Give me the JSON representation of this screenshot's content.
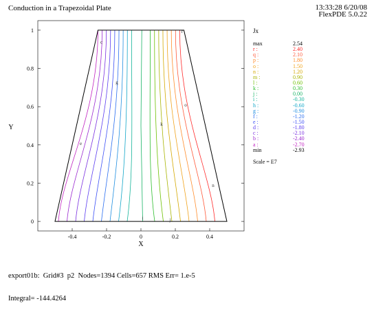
{
  "header": {
    "title": "Conduction in a Trapezoidal Plate",
    "timestamp": "13:33:28 6/20/08",
    "version": "FlexPDE 5.0.22"
  },
  "chart_data": {
    "type": "contour",
    "xlabel": "X",
    "ylabel": "Y",
    "xlim": [
      -0.6,
      0.6
    ],
    "ylim": [
      -0.05,
      1.05
    ],
    "xticks": [
      "-0.4",
      "-0.2",
      "0",
      "0.2",
      "0.4"
    ],
    "xtick_values": [
      -0.4,
      -0.2,
      0,
      0.2,
      0.4
    ],
    "yticks": [
      "0",
      "0.2",
      "0.4",
      "0.6",
      "0.8",
      "1"
    ],
    "ytick_values": [
      0,
      0.2,
      0.4,
      0.6,
      0.8,
      1
    ],
    "domain_outline": [
      [
        -0.5,
        0
      ],
      [
        0.5,
        0
      ],
      [
        0.25,
        1
      ],
      [
        -0.25,
        1
      ]
    ],
    "variable": "Jx",
    "max": "2.54",
    "min": "-2.93",
    "scale": "Scale = E7",
    "levels": [
      {
        "label": "r :",
        "value": "2.40",
        "color": "#ff2a2a"
      },
      {
        "label": "q :",
        "value": "2.10",
        "color": "#ff5a3a"
      },
      {
        "label": "p :",
        "value": "1.80",
        "color": "#ff8c2a"
      },
      {
        "label": "o :",
        "value": "1.50",
        "color": "#f0a21a"
      },
      {
        "label": "n :",
        "value": "1.20",
        "color": "#d4a800"
      },
      {
        "label": "m :",
        "value": "0.90",
        "color": "#a8b400"
      },
      {
        "label": "l :",
        "value": "0.60",
        "color": "#6cc000"
      },
      {
        "label": "k :",
        "value": "0.30",
        "color": "#2dbd2d"
      },
      {
        "label": "j :",
        "value": "0.00",
        "color": "#19b466"
      },
      {
        "label": "i :",
        "value": "-0.30",
        "color": "#14b49a"
      },
      {
        "label": "h :",
        "value": "-0.60",
        "color": "#12a6c8"
      },
      {
        "label": "g :",
        "value": "-0.90",
        "color": "#1e8ee0"
      },
      {
        "label": "f :",
        "value": "-1.20",
        "color": "#2a6ef0"
      },
      {
        "label": "e :",
        "value": "-1.50",
        "color": "#3a4ef5"
      },
      {
        "label": "d :",
        "value": "-1.80",
        "color": "#5a3cf0"
      },
      {
        "label": "c :",
        "value": "-2.10",
        "color": "#7a30e0"
      },
      {
        "label": "b :",
        "value": "-2.40",
        "color": "#9a28d0"
      },
      {
        "label": "a :",
        "value": "-2.70",
        "color": "#c020c0"
      }
    ],
    "contour_labels": [
      {
        "text": "r",
        "x": 0.24,
        "y": 0.985
      },
      {
        "text": "c",
        "x": -0.23,
        "y": 0.93
      },
      {
        "text": "g",
        "x": -0.14,
        "y": 0.72
      },
      {
        "text": "o",
        "x": 0.26,
        "y": 0.6
      },
      {
        "text": "k",
        "x": 0.12,
        "y": 0.5
      },
      {
        "text": "e",
        "x": -0.35,
        "y": 0.4
      },
      {
        "text": "n",
        "x": 0.42,
        "y": 0.18
      },
      {
        "text": "i",
        "x": 0.01,
        "y": 0.01
      },
      {
        "text": "j",
        "x": 0.17,
        "y": 0.0
      }
    ]
  },
  "footer": {
    "line1": "export01b:  Grid#3  p2  Nodes=1394 Cells=657 RMS Err= 1.e-5",
    "line2": "Integral= -144.4264"
  }
}
